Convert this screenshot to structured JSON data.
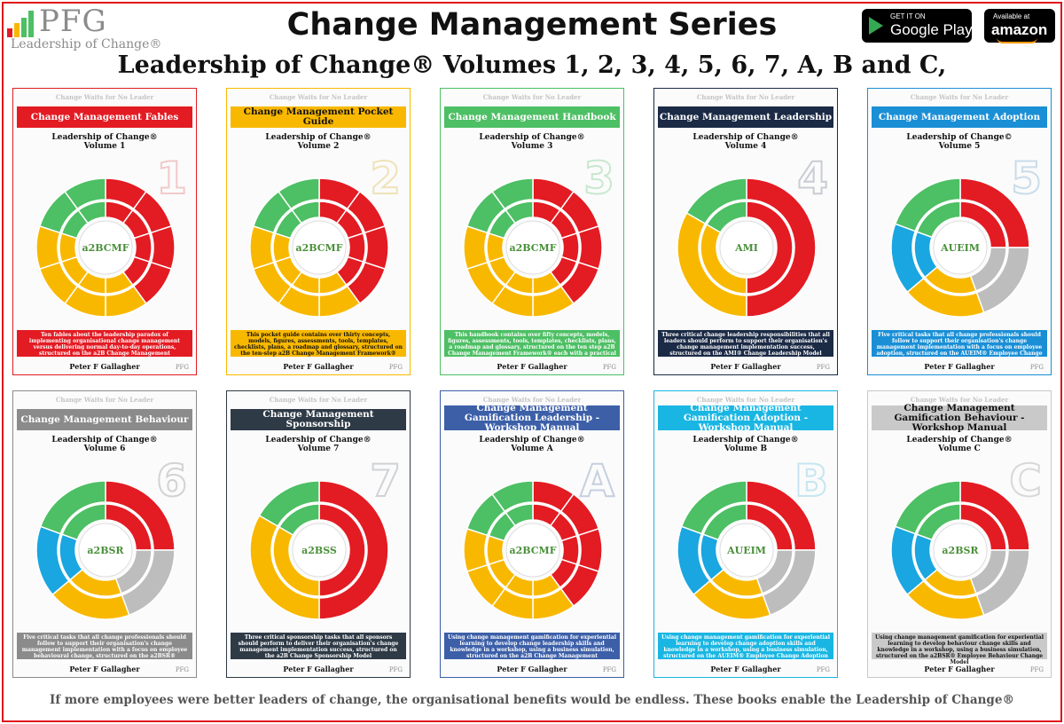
{
  "logo": {
    "text": "PFG",
    "sub": "Leadership of Change®"
  },
  "header": {
    "title": "Change Management Series",
    "subtitle": "Leadership of Change® Volumes 1, 2, 3, 4, 5, 6, 7,  A, B and C,"
  },
  "stores": {
    "google": {
      "small": "GET IT ON",
      "big": "Google Play"
    },
    "amazon": {
      "small": "Available at",
      "big": "amazon"
    }
  },
  "books": [
    {
      "title": "Change Management Fables",
      "series": "Leadership of Change®",
      "volume": "Volume 1",
      "numeral": "1",
      "color": "#e31b23",
      "numcolor": "#f2c9c9",
      "author": "Peter F Gallagher",
      "tagline": "Change Waits for No Leader",
      "center": "a2BCMF",
      "desc": "Ten fables about the leadership paradox of implementing organisational change management versus delivering normal day-to-day operations, structured on the a2B Change Management Framework®"
    },
    {
      "title": "Change Management Pocket Guide",
      "series": "Leadership of Change®",
      "volume": "Volume 2",
      "numeral": "2",
      "color": "#f9b800",
      "numcolor": "#efe3b8",
      "author": "Peter F Gallagher",
      "tagline": "Change Waits for No Leader",
      "center": "a2BCMF",
      "desc": "This pocket guide contains over thirty concepts, models, figures, assessments, tools, templates, checklists, plans, a roadmap and glossary, structured on the ten-step a2B Change Management Framework®"
    },
    {
      "title": "Change Management Handbook",
      "series": "Leadership of Change®",
      "volume": "Volume 3",
      "numeral": "3",
      "color": "#4dbf64",
      "numcolor": "#c8e8cf",
      "author": "Peter F Gallagher",
      "tagline": "Change Waits for No Leader",
      "center": "a2BCMF",
      "desc": "This handbook contains over fifty concepts, models, figures, assessments, tools, templates, checklists, plans, a roadmap and glossary, structured on the ten step a2B Change Management Framework® each with a practical case study"
    },
    {
      "title": "Change Management Leadership",
      "series": "Leadership of Change®",
      "volume": "Volume 4",
      "numeral": "4",
      "color": "#1b2a45",
      "numcolor": "#c9ccd2",
      "author": "Peter F Gallagher",
      "tagline": "Change Waits for No Leader",
      "center": "AMI",
      "desc": "Three critical change leadership responsibilities that all leaders should perform to support their organisation's change management implementation success, structured on the AMI® Change Leadership Model"
    },
    {
      "title": "Change Management Adoption",
      "series": "Leadership of Change©",
      "volume": "Volume 5",
      "numeral": "5",
      "color": "#1a8fd6",
      "numcolor": "#c9dcea",
      "author": "Peter F Gallagher",
      "tagline": "Change Waits for No Leader",
      "center": "AUEIM",
      "desc": "Five critical tasks that all change professionals should follow to support their organisation's change management implementation with a focus on employee adoption, structured on the AUEIM® Employee Change Adoption Model"
    },
    {
      "title": "Change Management Behaviour",
      "series": "Leadership of Change®",
      "volume": "Volume 6",
      "numeral": "6",
      "color": "#8b8b8b",
      "numcolor": "#d2d2d2",
      "author": "Peter F Gallagher",
      "tagline": "Change Waits for No Leader",
      "center": "a2BSR",
      "desc": "Five critical tasks that all change professionals should follow to support their organisation's change management implementation with a focus on employee behavioural change, structured on the a2BSR® Employee Behaviour Change Model"
    },
    {
      "title": "Change Management Sponsorship",
      "series": "Leadership of Change®",
      "volume": "Volume 7",
      "numeral": "7",
      "color": "#2e3a46",
      "numcolor": "#cfd2d6",
      "author": "Peter F Gallagher",
      "tagline": "Change Waits for No Leader",
      "center": "a2BSS",
      "desc": "Three critical sponsorship tasks that all sponsors should perform to deliver their organisation's change management implementation success, structured on the a2B Change Sponsorship Model"
    },
    {
      "title": "Change Management Gamification Leadership - Workshop Manual",
      "series": "Leadership of Change®",
      "volume": "Volume A",
      "numeral": "A",
      "color": "#3c5fa8",
      "numcolor": "#c6cfe0",
      "author": "Peter F Gallagher",
      "tagline": "Change Waits for No Leader",
      "center": "a2BCMF",
      "desc": "Using change management gamification for experiential learning to develop change leadership skills and knowledge in a workshop, using a business simulation, structured on the a2B Change Management Framework®"
    },
    {
      "title": "Change Management Gamification Adoption - Workshop Manual",
      "series": "Leadership of Change®",
      "volume": "Volume B",
      "numeral": "B",
      "color": "#19b6e3",
      "numcolor": "#c4e6f1",
      "author": "Peter F Gallagher",
      "tagline": "Change Waits for No Leader",
      "center": "AUEIM",
      "desc": "Using change management gamification for experiential learning to develop change adoption skills and knowledge in a workshop, using a business simulation, structured on the AUEIM® Employee Change Adoption Model"
    },
    {
      "title": "Change Management Gamification Behaviour - Workshop Manual",
      "series": "Leadership of Change®",
      "volume": "Volume C",
      "numeral": "C",
      "color": "#c9c9c9",
      "numcolor": "#d8d8d8",
      "author": "Peter F Gallagher",
      "tagline": "Change Waits for No Leader",
      "center": "a2BSR",
      "desc": "Using change management gamification for experiential learning to develop behaviour change skills and knowledge in a workshop, using a business simulation, structured on the a2BSR® Employee Behaviour Change Model"
    }
  ],
  "footer": "If more employees were better leaders of change, the organisational benefits would be endless. These books enable the Leadership of Change®"
}
